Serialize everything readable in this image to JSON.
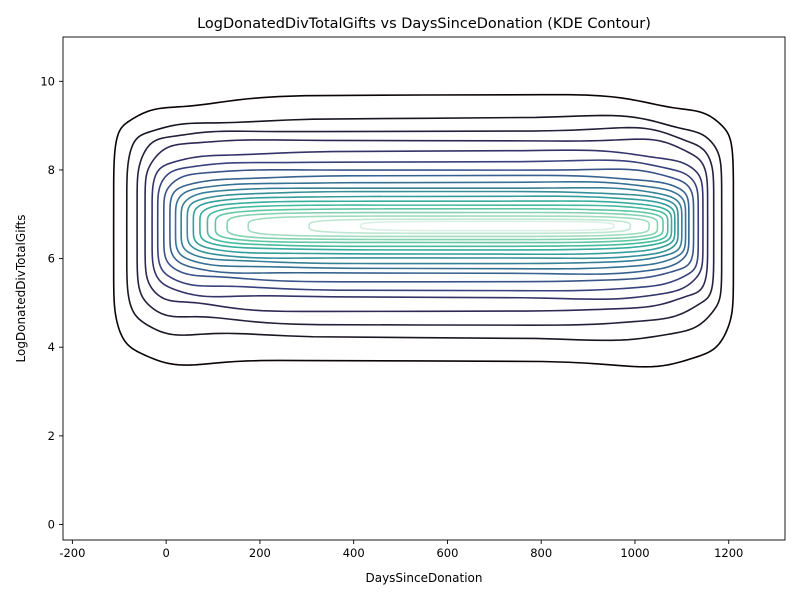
{
  "chart_data": {
    "type": "contour",
    "title": "LogDonatedDivTotalGifts vs DaysSinceDonation (KDE Contour)",
    "xlabel": "DaysSinceDonation",
    "ylabel": "LogDonatedDivTotalGifts",
    "xlim": [
      -220,
      1320
    ],
    "ylim": [
      -0.35,
      11.0
    ],
    "xticks": [
      -200,
      0,
      200,
      400,
      600,
      800,
      1000,
      1200
    ],
    "yticks": [
      0,
      2,
      4,
      6,
      8,
      10
    ],
    "grid": false,
    "legend": "none",
    "colormap": "mako",
    "level_colors": [
      "#0b0405",
      "#1b1523",
      "#26203b",
      "#2e2953",
      "#34346a",
      "#38427d",
      "#395489",
      "#38628f",
      "#377294",
      "#368097",
      "#35909a",
      "#349e9c",
      "#37ad9d",
      "#46bb9f",
      "#60c7a5",
      "#85d2b2",
      "#a2dcc0",
      "#bfe6d1",
      "#daf0e4"
    ],
    "density_peak": {
      "x": 820,
      "y": 6.68
    },
    "contour_levels": [
      {
        "level": 1,
        "xmin": -112,
        "xmax": 1210,
        "ymin": 3.58,
        "ymax": 9.58
      },
      {
        "level": 2,
        "xmin": -84,
        "xmax": 1185,
        "ymin": 4.2,
        "ymax": 9.15
      },
      {
        "level": 3,
        "xmin": -62,
        "xmax": 1168,
        "ymin": 4.55,
        "ymax": 8.92
      },
      {
        "level": 4,
        "xmin": -45,
        "xmax": 1155,
        "ymin": 4.85,
        "ymax": 8.7
      },
      {
        "level": 5,
        "xmin": -30,
        "xmax": 1145,
        "ymin": 5.1,
        "ymax": 8.4
      },
      {
        "level": 6,
        "xmin": -18,
        "xmax": 1135,
        "ymin": 5.3,
        "ymax": 8.2
      },
      {
        "level": 7,
        "xmin": -5,
        "xmax": 1125,
        "ymin": 5.5,
        "ymax": 8.02
      },
      {
        "level": 8,
        "xmin": 8,
        "xmax": 1115,
        "ymin": 5.65,
        "ymax": 7.85
      },
      {
        "level": 9,
        "xmin": 20,
        "xmax": 1108,
        "ymin": 5.78,
        "ymax": 7.72
      },
      {
        "level": 10,
        "xmin": 32,
        "xmax": 1100,
        "ymin": 5.9,
        "ymax": 7.6
      },
      {
        "level": 11,
        "xmin": 45,
        "xmax": 1092,
        "ymin": 6.0,
        "ymax": 7.5
      },
      {
        "level": 12,
        "xmin": 58,
        "xmax": 1085,
        "ymin": 6.1,
        "ymax": 7.4
      },
      {
        "level": 13,
        "xmin": 72,
        "xmax": 1078,
        "ymin": 6.2,
        "ymax": 7.3
      },
      {
        "level": 14,
        "xmin": 88,
        "xmax": 1070,
        "ymin": 6.28,
        "ymax": 7.21
      },
      {
        "level": 15,
        "xmin": 105,
        "xmax": 1060,
        "ymin": 6.36,
        "ymax": 7.12
      },
      {
        "level": 16,
        "xmin": 130,
        "xmax": 1048,
        "ymin": 6.43,
        "ymax": 7.04
      },
      {
        "level": 17,
        "xmin": 175,
        "xmax": 1030,
        "ymin": 6.5,
        "ymax": 6.96
      },
      {
        "level": 18,
        "xmin": 305,
        "xmax": 990,
        "ymin": 6.57,
        "ymax": 6.89
      },
      {
        "level": 19,
        "xmin": 415,
        "xmax": 955,
        "ymin": 6.63,
        "ymax": 6.84
      }
    ]
  }
}
